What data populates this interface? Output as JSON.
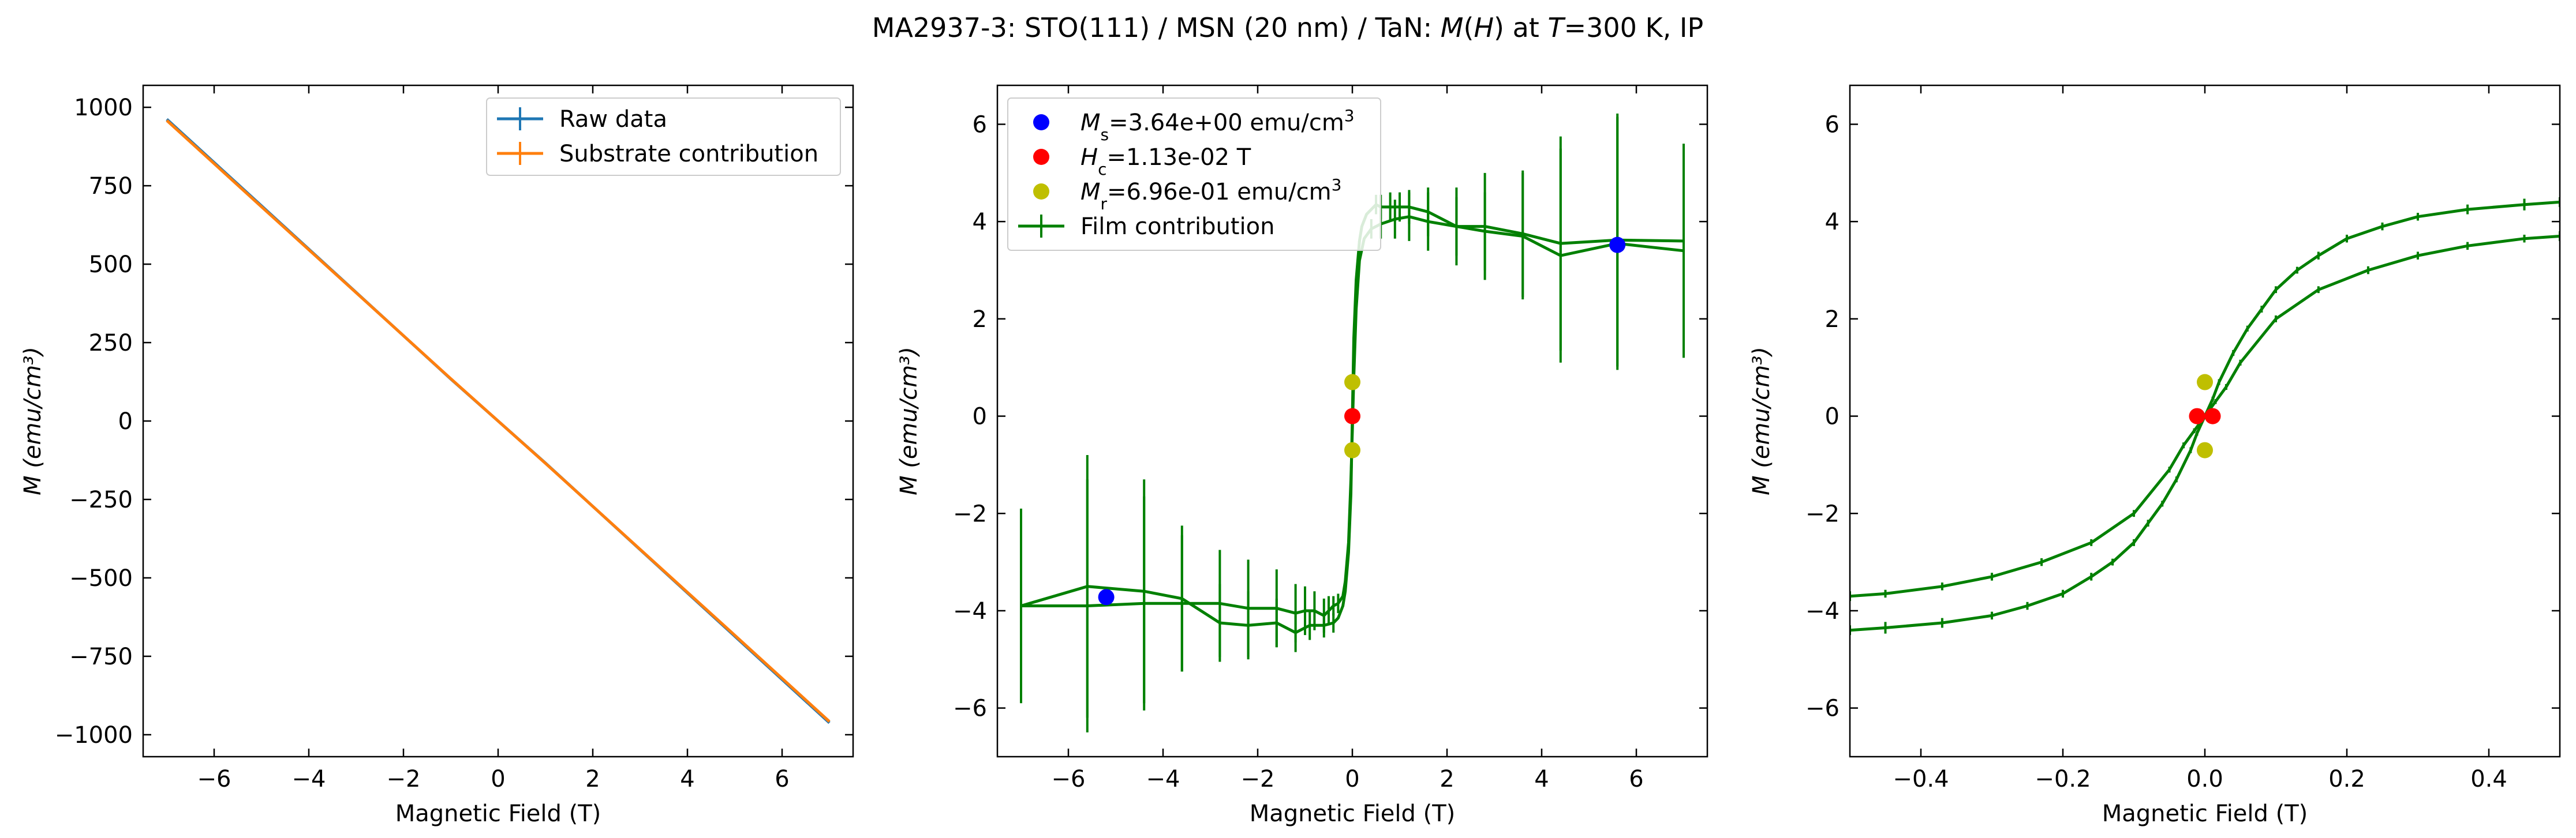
{
  "figure": {
    "title_parts": [
      {
        "t": "MA2937-3: STO(111)  / MSN (20 nm) / TaN: ",
        "s": "n"
      },
      {
        "t": "M",
        "s": "i"
      },
      {
        "t": "(",
        "s": "n"
      },
      {
        "t": "H",
        "s": "i"
      },
      {
        "t": ") at ",
        "s": "n"
      },
      {
        "t": "T",
        "s": "i"
      },
      {
        "t": "=300 K, IP",
        "s": "n"
      }
    ]
  },
  "chart_data": [
    {
      "type": "line",
      "xlabel": "Magnetic Field (T)",
      "ylabel": "M (emu/cm³)",
      "xlim": [
        -7.5,
        7.5
      ],
      "ylim": [
        -1070,
        1070
      ],
      "xticks": [
        -6,
        -4,
        -2,
        0,
        2,
        4,
        6
      ],
      "xticklabels": [
        "−6",
        "−4",
        "−2",
        "0",
        "2",
        "4",
        "6"
      ],
      "yticks": [
        -1000,
        -750,
        -500,
        -250,
        0,
        250,
        500,
        750,
        1000
      ],
      "yticklabels": [
        "−1000",
        "−750",
        "−500",
        "−250",
        "0",
        "250",
        "500",
        "750",
        "1000"
      ],
      "grid": false,
      "legend_position": "top-right",
      "series": [
        {
          "name": "Raw data",
          "color": "#1f77b4",
          "x": [
            -7,
            -5,
            -3,
            -1,
            0,
            1,
            3,
            5,
            7
          ],
          "y": [
            962,
            686,
            410,
            134,
            0,
            -134,
            -410,
            -686,
            -962
          ]
        },
        {
          "name": "Substrate contribution",
          "color": "#ff7f0e",
          "x": [
            -7,
            -5,
            -3,
            -1,
            0,
            1,
            3,
            5,
            7
          ],
          "y": [
            958,
            683,
            409,
            135,
            0,
            -135,
            -409,
            -683,
            -958
          ]
        }
      ]
    },
    {
      "type": "line",
      "xlabel": "Magnetic Field (T)",
      "ylabel": "M (emu/cm³)",
      "xlim": [
        -7.5,
        7.5
      ],
      "ylim": [
        -7,
        6.8
      ],
      "xticks": [
        -6,
        -4,
        -2,
        0,
        2,
        4,
        6
      ],
      "xticklabels": [
        "−6",
        "−4",
        "−2",
        "0",
        "2",
        "4",
        "6"
      ],
      "yticks": [
        -6,
        -4,
        -2,
        0,
        2,
        4,
        6
      ],
      "yticklabels": [
        "−6",
        "−4",
        "−2",
        "0",
        "2",
        "4",
        "6"
      ],
      "grid": false,
      "legend_position": "top-left",
      "series": [
        {
          "name": "Film contribution",
          "color": "#008000",
          "branches": [
            {
              "x": [
                7.0,
                5.6,
                4.4,
                3.6,
                2.8,
                2.2,
                1.6,
                1.2,
                0.9,
                0.6,
                0.4,
                0.25,
                0.15,
                0.08,
                0.03,
                0.0,
                -0.03,
                -0.08,
                -0.15,
                -0.2,
                -0.3,
                -0.4,
                -0.5,
                -0.6,
                -0.8,
                -1.0,
                -1.2,
                -1.6,
                -2.2,
                -2.8,
                -3.6,
                -4.4,
                -5.6,
                -7.0
              ],
              "y": [
                3.6,
                3.62,
                3.55,
                3.75,
                3.9,
                3.9,
                4.0,
                4.1,
                4.05,
                3.95,
                3.85,
                3.65,
                3.2,
                2.2,
                0.8,
                -0.3,
                -1.3,
                -2.6,
                -3.4,
                -3.7,
                -3.85,
                -3.9,
                -4.0,
                -4.1,
                -4.0,
                -4.0,
                -4.05,
                -3.95,
                -3.95,
                -3.85,
                -3.85,
                -3.85,
                -3.9,
                -3.9
              ],
              "err": [
                2.0,
                2.6,
                2.2,
                1.3,
                1.1,
                0.8,
                0.6,
                0.5,
                0.4,
                0.3,
                0.2,
                0,
                0,
                0,
                0,
                0,
                0,
                0,
                0,
                0,
                0.2,
                0.2,
                0.3,
                0.35,
                0.4,
                0.5,
                0.6,
                0.8,
                1.0,
                1.1,
                1.4,
                2.2,
                2.6,
                2.0
              ]
            },
            {
              "x": [
                -7.0,
                -5.6,
                -4.4,
                -3.6,
                -2.8,
                -2.2,
                -1.6,
                -1.2,
                -0.9,
                -0.6,
                -0.4,
                -0.3,
                -0.2,
                -0.15,
                -0.08,
                -0.03,
                0.0,
                0.03,
                0.08,
                0.15,
                0.2,
                0.3,
                0.4,
                0.5,
                0.6,
                0.8,
                1.0,
                1.2,
                1.6,
                2.2,
                2.8,
                3.6,
                4.4,
                5.6,
                7.0
              ],
              "y": [
                -3.9,
                -3.5,
                -3.6,
                -3.75,
                -4.25,
                -4.3,
                -4.25,
                -4.45,
                -4.3,
                -4.3,
                -4.25,
                -4.15,
                -3.9,
                -3.6,
                -2.8,
                -1.6,
                0.0,
                1.6,
                2.8,
                3.6,
                3.9,
                4.15,
                4.25,
                4.35,
                4.3,
                4.3,
                4.3,
                4.3,
                4.2,
                3.9,
                3.8,
                3.7,
                3.3,
                3.55,
                3.4
              ],
              "err": [
                1.9,
                2.7,
                2.3,
                1.5,
                0.8,
                0.7,
                0.5,
                0.4,
                0.3,
                0.25,
                0.2,
                0,
                0,
                0,
                0,
                0,
                0,
                0,
                0,
                0,
                0,
                0,
                0,
                0.2,
                0.25,
                0.3,
                0.3,
                0.35,
                0.5,
                0.6,
                0.8,
                1.3,
                2.2,
                2.6,
                2.2
              ]
            }
          ]
        }
      ],
      "markers": [
        {
          "color": "#0000ff",
          "points": [
            [
              -5.2,
              -3.72
            ],
            [
              5.6,
              3.52
            ]
          ]
        },
        {
          "color": "#ff0000",
          "points": [
            [
              0.0,
              0.0
            ]
          ]
        },
        {
          "color": "#bfbf00",
          "points": [
            [
              0.0,
              0.7
            ],
            [
              0.0,
              -0.7
            ]
          ]
        }
      ],
      "legend": [
        {
          "kind": "marker",
          "color": "#0000ff",
          "parts": [
            {
              "t": "M",
              "s": "i"
            },
            {
              "t": "s",
              "s": "sub"
            },
            {
              "t": "=3.64e+00 emu/cm",
              "s": "n"
            },
            {
              "t": "3",
              "s": "sup"
            }
          ]
        },
        {
          "kind": "marker",
          "color": "#ff0000",
          "parts": [
            {
              "t": "H",
              "s": "i"
            },
            {
              "t": "c",
              "s": "sub"
            },
            {
              "t": "=1.13e-02 T",
              "s": "n"
            }
          ]
        },
        {
          "kind": "marker",
          "color": "#bfbf00",
          "parts": [
            {
              "t": "M",
              "s": "i"
            },
            {
              "t": "r",
              "s": "sub"
            },
            {
              "t": "=6.96e-01 emu/cm",
              "s": "n"
            },
            {
              "t": "3",
              "s": "sup"
            }
          ]
        },
        {
          "kind": "errorline",
          "color": "#008000",
          "parts": [
            {
              "t": "Film contribution",
              "s": "n"
            }
          ]
        }
      ]
    },
    {
      "type": "line",
      "xlabel": "Magnetic Field (T)",
      "ylabel": "M (emu/cm³)",
      "xlim": [
        -0.5,
        0.5
      ],
      "ylim": [
        -7,
        6.8
      ],
      "xticks": [
        -0.4,
        -0.2,
        0.0,
        0.2,
        0.4
      ],
      "xticklabels": [
        "−0.4",
        "−0.2",
        "0.0",
        "0.2",
        "0.4"
      ],
      "yticks": [
        -6,
        -4,
        -2,
        0,
        2,
        4,
        6
      ],
      "yticklabels": [
        "−6",
        "−4",
        "−2",
        "0",
        "2",
        "4",
        "6"
      ],
      "grid": false,
      "legend_position": "none",
      "series": [
        {
          "name": "",
          "color": "#008000",
          "branches": [
            {
              "x": [
                0.5,
                0.45,
                0.37,
                0.3,
                0.23,
                0.16,
                0.1,
                0.05,
                0.03,
                0.015,
                0.0,
                -0.011,
                -0.02,
                -0.04,
                -0.06,
                -0.08,
                -0.1,
                -0.13,
                -0.16,
                -0.2,
                -0.25,
                -0.3,
                -0.37,
                -0.45,
                -0.5
              ],
              "y": [
                3.7,
                3.65,
                3.5,
                3.3,
                3.0,
                2.6,
                2.0,
                1.1,
                0.6,
                0.3,
                0.0,
                -0.35,
                -0.7,
                -1.3,
                -1.8,
                -2.2,
                -2.6,
                -3.0,
                -3.3,
                -3.65,
                -3.9,
                -4.1,
                -4.25,
                -4.35,
                -4.4
              ],
              "err": [
                0.1,
                0.08,
                0.08,
                0.08,
                0.08,
                0.07,
                0.07,
                0.06,
                0.06,
                0.05,
                0.05,
                0.05,
                0.06,
                0.06,
                0.06,
                0.07,
                0.07,
                0.07,
                0.08,
                0.08,
                0.08,
                0.08,
                0.1,
                0.12,
                0.1
              ]
            },
            {
              "x": [
                -0.5,
                -0.45,
                -0.37,
                -0.3,
                -0.23,
                -0.16,
                -0.1,
                -0.05,
                -0.03,
                -0.015,
                0.0,
                0.011,
                0.02,
                0.04,
                0.06,
                0.08,
                0.1,
                0.13,
                0.16,
                0.2,
                0.25,
                0.3,
                0.37,
                0.45,
                0.5
              ],
              "y": [
                -3.7,
                -3.65,
                -3.5,
                -3.3,
                -3.0,
                -2.6,
                -2.0,
                -1.1,
                -0.6,
                -0.3,
                0.0,
                0.35,
                0.7,
                1.3,
                1.8,
                2.2,
                2.6,
                3.0,
                3.3,
                3.65,
                3.9,
                4.1,
                4.25,
                4.35,
                4.4
              ],
              "err": [
                0.1,
                0.08,
                0.08,
                0.08,
                0.08,
                0.07,
                0.07,
                0.06,
                0.06,
                0.05,
                0.05,
                0.05,
                0.06,
                0.06,
                0.06,
                0.07,
                0.07,
                0.07,
                0.08,
                0.08,
                0.08,
                0.08,
                0.1,
                0.12,
                0.1
              ]
            }
          ]
        }
      ],
      "markers": [
        {
          "color": "#ff0000",
          "points": [
            [
              -0.011,
              0.0
            ],
            [
              0.011,
              0.0
            ]
          ]
        },
        {
          "color": "#bfbf00",
          "points": [
            [
              0.0,
              0.7
            ],
            [
              0.0,
              -0.7
            ]
          ]
        }
      ],
      "legend": []
    }
  ]
}
